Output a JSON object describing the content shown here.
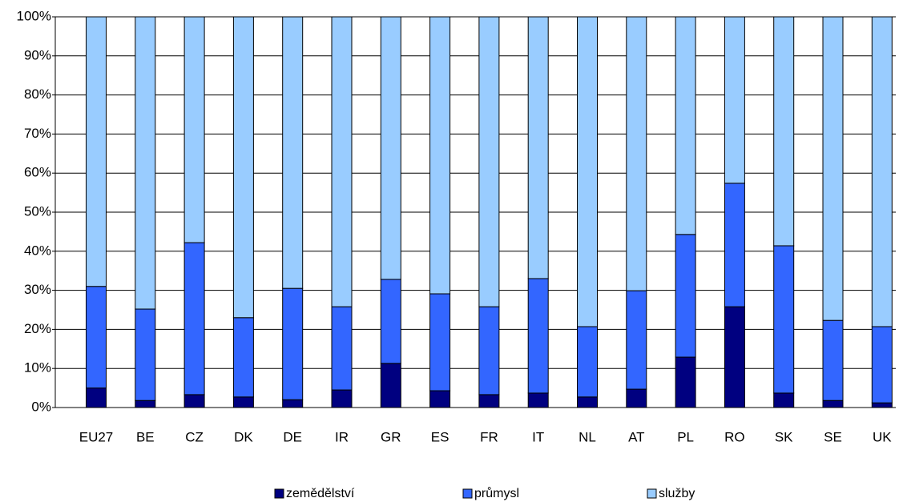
{
  "chart_data": {
    "type": "stacked_bar_100",
    "categories": [
      "EU27",
      "BE",
      "CZ",
      "DK",
      "DE",
      "IR",
      "GR",
      "ES",
      "FR",
      "IT",
      "NL",
      "AT",
      "PL",
      "RO",
      "SK",
      "SE",
      "UK"
    ],
    "series": [
      {
        "name": "zemědělství",
        "color": "#000080",
        "values": [
          5,
          1.8,
          3.3,
          2.7,
          2,
          4.5,
          11.3,
          4.3,
          3.3,
          3.7,
          2.7,
          4.7,
          12.9,
          25.8,
          3.7,
          1.8,
          1.2
        ]
      },
      {
        "name": "průmysl",
        "color": "#3366ff",
        "values": [
          26,
          23.4,
          38.9,
          20.3,
          28.5,
          21.3,
          21.5,
          24.8,
          22.5,
          29.3,
          18,
          25.2,
          31.4,
          31.6,
          37.7,
          20.5,
          19.5
        ]
      },
      {
        "name": "služby",
        "color": "#99ccff",
        "values": [
          69,
          74.8,
          57.8,
          77,
          69.5,
          74.2,
          67.2,
          70.9,
          74.2,
          67,
          79.3,
          70.1,
          55.7,
          42.6,
          58.6,
          77.7,
          79.3
        ]
      }
    ],
    "ylim": [
      0,
      100
    ],
    "yticks": [
      {
        "value": 0,
        "label": "0%"
      },
      {
        "value": 10,
        "label": "10%"
      },
      {
        "value": 20,
        "label": "20%"
      },
      {
        "value": 30,
        "label": "30%"
      },
      {
        "value": 40,
        "label": "40%"
      },
      {
        "value": 50,
        "label": "50%"
      },
      {
        "value": 60,
        "label": "60%"
      },
      {
        "value": 70,
        "label": "70%"
      },
      {
        "value": 80,
        "label": "80%"
      },
      {
        "value": 90,
        "label": "90%"
      },
      {
        "value": 100,
        "label": "100%"
      }
    ],
    "grid": true,
    "legend": "bottom"
  }
}
